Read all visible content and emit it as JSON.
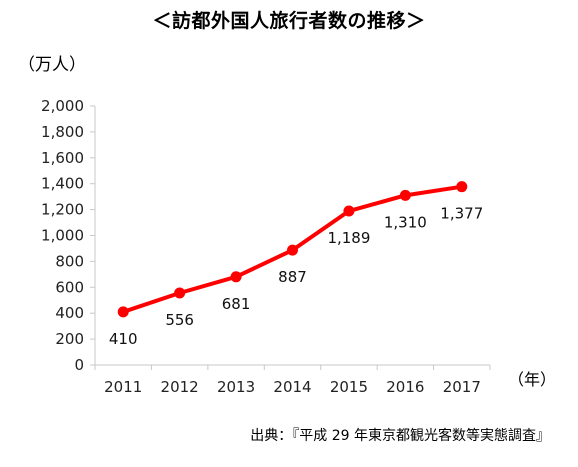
{
  "chart_data": {
    "type": "line",
    "title": "＜訪都外国人旅行者数の推移＞",
    "ylabel": "（万人）",
    "xlabel": "（年）",
    "x": [
      "2011",
      "2012",
      "2013",
      "2014",
      "2015",
      "2016",
      "2017"
    ],
    "series": [
      {
        "values": [
          410,
          556,
          681,
          887,
          1189,
          1310,
          1377
        ],
        "labels": [
          "410",
          "556",
          "681",
          "887",
          "1,189",
          "1,310",
          "1,377"
        ]
      }
    ],
    "ylim": [
      0,
      2000
    ],
    "yticks": [
      "0",
      "200",
      "400",
      "600",
      "800",
      "1,000",
      "1,200",
      "1,400",
      "1,600",
      "1,800",
      "2,000"
    ],
    "grid": false,
    "line_color": "#ff0000"
  },
  "source": "出典：『平成 29 年東京都観光客数等実態調査』"
}
